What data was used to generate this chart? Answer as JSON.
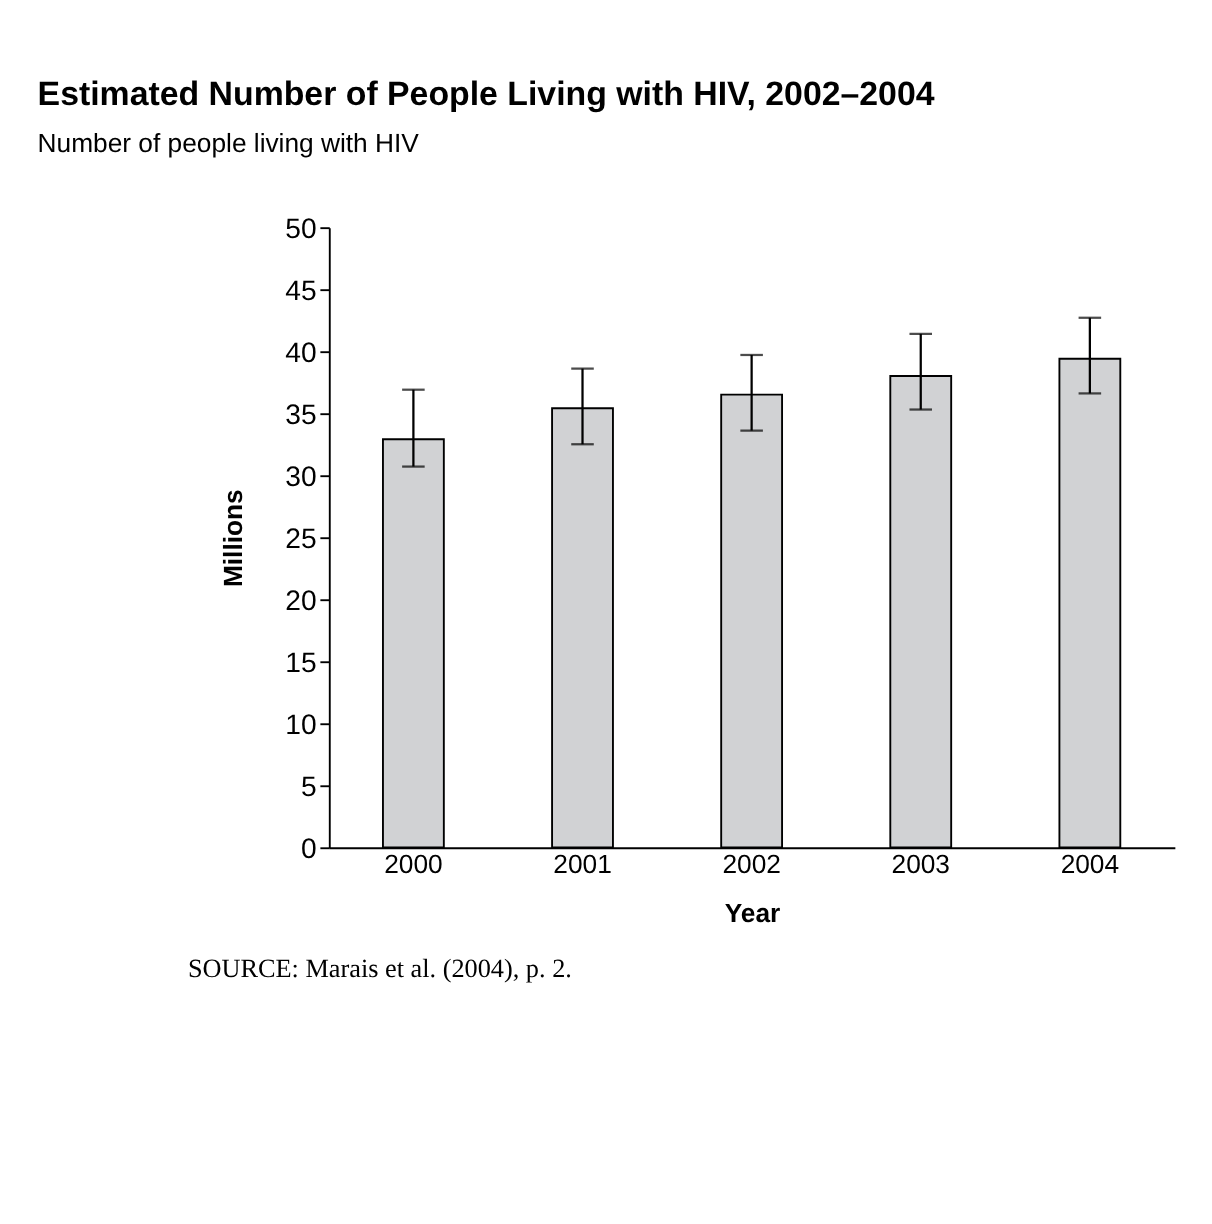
{
  "chart_data": {
    "type": "bar",
    "title": "Estimated Number of People Living with HIV, 2002–2004",
    "subtitle": "Number of people living with HIV",
    "xlabel": "Year",
    "ylabel": "Millions",
    "categories": [
      "2000",
      "2001",
      "2002",
      "2003",
      "2004"
    ],
    "values": [
      32.9,
      35.4,
      36.5,
      38.0,
      39.4
    ],
    "errors": [
      [
        30.7,
        36.9
      ],
      [
        32.5,
        38.6
      ],
      [
        33.6,
        39.7
      ],
      [
        35.3,
        41.4
      ],
      [
        36.6,
        42.7
      ]
    ],
    "color": "#d1d2d4",
    "ylim": [
      0,
      50
    ],
    "yticks": [
      0,
      5,
      10,
      15,
      20,
      25,
      30,
      35,
      40,
      45,
      50
    ],
    "grid": false,
    "annotations": [
      "SOURCE: Marais et al. (2004), p. 2."
    ]
  }
}
